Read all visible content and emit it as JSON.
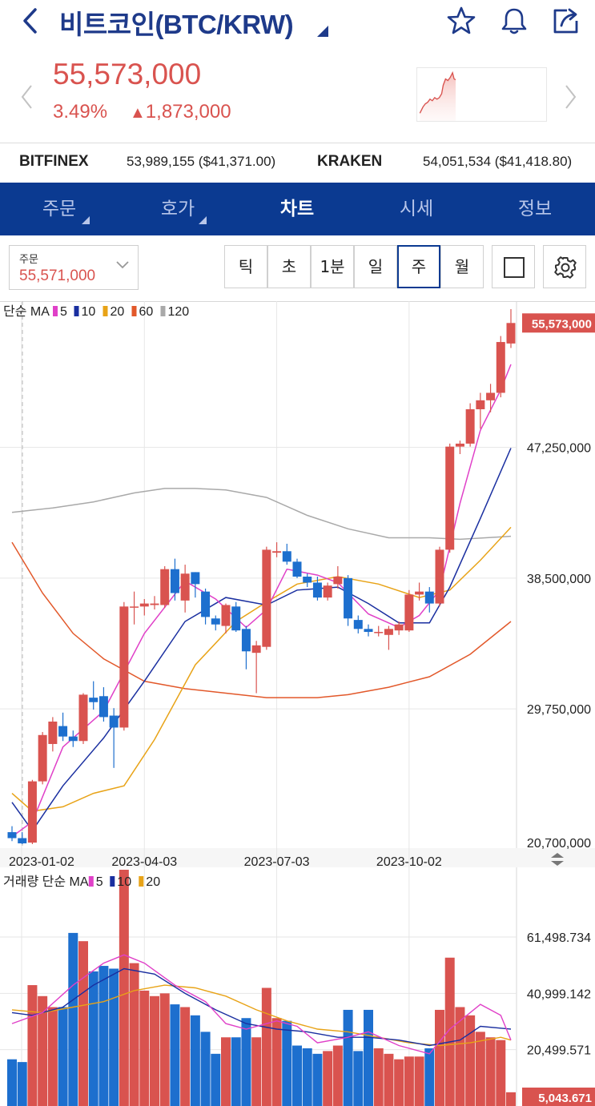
{
  "header": {
    "title": "비트코인(BTC/KRW)",
    "icons": [
      "back-icon",
      "star-icon",
      "bell-icon",
      "share-icon"
    ]
  },
  "price": {
    "current": "55,573,000",
    "change_pct": "3.49%",
    "change_abs": "1,873,000",
    "direction": "up"
  },
  "exchanges": [
    {
      "name": "BITFINEX",
      "value": "53,989,155 ($41,371.00)"
    },
    {
      "name": "KRAKEN",
      "value": "54,051,534 ($41,418.80)"
    }
  ],
  "tabs": [
    {
      "label": "주문",
      "has_menu": true,
      "active": false
    },
    {
      "label": "호가",
      "has_menu": true,
      "active": false
    },
    {
      "label": "차트",
      "has_menu": false,
      "active": true
    },
    {
      "label": "시세",
      "has_menu": false,
      "active": false
    },
    {
      "label": "정보",
      "has_menu": false,
      "active": false
    }
  ],
  "order": {
    "label": "주문",
    "value": "55,571,000"
  },
  "periods": [
    {
      "label": "틱",
      "active": false
    },
    {
      "label": "초",
      "active": false
    },
    {
      "label": "1분",
      "active": false
    },
    {
      "label": "일",
      "active": false
    },
    {
      "label": "주",
      "active": true
    },
    {
      "label": "월",
      "active": false
    }
  ],
  "colors": {
    "up": "#d9534f",
    "down": "#1d6fce",
    "brand": "#0b3a91",
    "ma5": "#e040c8",
    "ma10": "#1a2fa0",
    "ma20": "#e8a317",
    "ma60": "#e2582a",
    "ma120": "#a9a9a9"
  },
  "chart_data": [
    {
      "type": "candlestick",
      "legend": {
        "prefix": "단순 MA",
        "items": [
          {
            "label": "5",
            "color": "#e040c8"
          },
          {
            "label": "10",
            "color": "#1a2fa0"
          },
          {
            "label": "20",
            "color": "#e8a317"
          },
          {
            "label": "60",
            "color": "#e2582a"
          },
          {
            "label": "120",
            "color": "#a9a9a9"
          }
        ]
      },
      "y_ticks": [
        {
          "value": 47250000,
          "label": "47,250,000"
        },
        {
          "value": 38500000,
          "label": "38,500,000"
        },
        {
          "value": 29750000,
          "label": "29,750,000"
        },
        {
          "value": 20700000,
          "label": "20,700,000"
        }
      ],
      "last_price_label": "55,573,000",
      "last_price": 55573000,
      "ylim": [
        20700000,
        56500000
      ],
      "x_ticks": [
        {
          "index": 0,
          "label": "2023-01-02"
        },
        {
          "index": 13,
          "label": "2023-04-03"
        },
        {
          "index": 26,
          "label": "2023-07-03"
        },
        {
          "index": 39,
          "label": "2023-10-02"
        }
      ],
      "candles": [
        {
          "o": 21500000,
          "h": 21900000,
          "l": 20900000,
          "c": 21100000
        },
        {
          "o": 21100000,
          "h": 21500000,
          "l": 20700000,
          "c": 20750000
        },
        {
          "o": 20800000,
          "h": 25000000,
          "l": 20700000,
          "c": 24900000
        },
        {
          "o": 24900000,
          "h": 28200000,
          "l": 24700000,
          "c": 28000000
        },
        {
          "o": 27400000,
          "h": 29200000,
          "l": 26900000,
          "c": 28900000
        },
        {
          "o": 28600000,
          "h": 29500000,
          "l": 27600000,
          "c": 27900000
        },
        {
          "o": 27900000,
          "h": 28300000,
          "l": 27200000,
          "c": 27600000
        },
        {
          "o": 27600000,
          "h": 30800000,
          "l": 27400000,
          "c": 30700000
        },
        {
          "o": 30500000,
          "h": 31600000,
          "l": 29700000,
          "c": 30200000
        },
        {
          "o": 30600000,
          "h": 31200000,
          "l": 28900000,
          "c": 29200000
        },
        {
          "o": 29300000,
          "h": 29800000,
          "l": 25800000,
          "c": 28500000
        },
        {
          "o": 28500000,
          "h": 36900000,
          "l": 28300000,
          "c": 36600000
        },
        {
          "o": 36600000,
          "h": 37600000,
          "l": 35400000,
          "c": 36600000
        },
        {
          "o": 36600000,
          "h": 37100000,
          "l": 36000000,
          "c": 36800000
        },
        {
          "o": 36700000,
          "h": 37300000,
          "l": 36400000,
          "c": 36800000
        },
        {
          "o": 36700000,
          "h": 39300000,
          "l": 36500000,
          "c": 39100000
        },
        {
          "o": 39100000,
          "h": 39800000,
          "l": 37000000,
          "c": 37500000
        },
        {
          "o": 37000000,
          "h": 39400000,
          "l": 36200000,
          "c": 38800000
        },
        {
          "o": 38900000,
          "h": 38900000,
          "l": 37200000,
          "c": 38100000
        },
        {
          "o": 37600000,
          "h": 37800000,
          "l": 35400000,
          "c": 35900000
        },
        {
          "o": 35800000,
          "h": 36000000,
          "l": 35000000,
          "c": 35400000
        },
        {
          "o": 35300000,
          "h": 36800000,
          "l": 34800000,
          "c": 36700000
        },
        {
          "o": 36600000,
          "h": 36900000,
          "l": 34900000,
          "c": 35000000
        },
        {
          "o": 35100000,
          "h": 35300000,
          "l": 32400000,
          "c": 33600000
        },
        {
          "o": 33500000,
          "h": 34300000,
          "l": 30800000,
          "c": 34000000
        },
        {
          "o": 33900000,
          "h": 40600000,
          "l": 33700000,
          "c": 40400000
        },
        {
          "o": 40200000,
          "h": 40900000,
          "l": 39900000,
          "c": 40300000
        },
        {
          "o": 40300000,
          "h": 40800000,
          "l": 39400000,
          "c": 39600000
        },
        {
          "o": 39600000,
          "h": 39800000,
          "l": 38500000,
          "c": 38600000
        },
        {
          "o": 38600000,
          "h": 38800000,
          "l": 37900000,
          "c": 38200000
        },
        {
          "o": 38200000,
          "h": 38600000,
          "l": 37000000,
          "c": 37200000
        },
        {
          "o": 37200000,
          "h": 38200000,
          "l": 37000000,
          "c": 38000000
        },
        {
          "o": 38100000,
          "h": 39300000,
          "l": 37800000,
          "c": 38600000
        },
        {
          "o": 38500000,
          "h": 38700000,
          "l": 35300000,
          "c": 35800000
        },
        {
          "o": 35700000,
          "h": 36000000,
          "l": 34800000,
          "c": 35100000
        },
        {
          "o": 35100000,
          "h": 35400000,
          "l": 34600000,
          "c": 34900000
        },
        {
          "o": 34900000,
          "h": 35300000,
          "l": 34600000,
          "c": 34900000
        },
        {
          "o": 34700000,
          "h": 35300000,
          "l": 33700000,
          "c": 35100000
        },
        {
          "o": 35000000,
          "h": 35600000,
          "l": 34700000,
          "c": 35400000
        },
        {
          "o": 35000000,
          "h": 37700000,
          "l": 34900000,
          "c": 37400000
        },
        {
          "o": 37400000,
          "h": 38200000,
          "l": 37000000,
          "c": 37600000
        },
        {
          "o": 37600000,
          "h": 37900000,
          "l": 36200000,
          "c": 36800000
        },
        {
          "o": 36800000,
          "h": 40600000,
          "l": 36600000,
          "c": 40400000
        },
        {
          "o": 40400000,
          "h": 47500000,
          "l": 40200000,
          "c": 47300000
        },
        {
          "o": 47300000,
          "h": 47700000,
          "l": 46800000,
          "c": 47500000
        },
        {
          "o": 47500000,
          "h": 50200000,
          "l": 47300000,
          "c": 49800000
        },
        {
          "o": 49800000,
          "h": 50900000,
          "l": 48500000,
          "c": 50400000
        },
        {
          "o": 50400000,
          "h": 51500000,
          "l": 49600000,
          "c": 50900000
        },
        {
          "o": 50900000,
          "h": 54700000,
          "l": 50600000,
          "c": 54300000
        },
        {
          "o": 54200000,
          "h": 56500000,
          "l": 53900000,
          "c": 55573000
        }
      ],
      "ma": {
        "ma5": [
          [
            0,
            21200000
          ],
          [
            2,
            22200000
          ],
          [
            5,
            27200000
          ],
          [
            9,
            29600000
          ],
          [
            13,
            34800000
          ],
          [
            17,
            38300000
          ],
          [
            20,
            37100000
          ],
          [
            23,
            35200000
          ],
          [
            25,
            36400000
          ],
          [
            27,
            39100000
          ],
          [
            30,
            38700000
          ],
          [
            32,
            38200000
          ],
          [
            35,
            36100000
          ],
          [
            38,
            35200000
          ],
          [
            40,
            36000000
          ],
          [
            42,
            37700000
          ],
          [
            44,
            43500000
          ],
          [
            46,
            48400000
          ],
          [
            48,
            51100000
          ],
          [
            49,
            52800000
          ]
        ],
        "ma10": [
          [
            0,
            23500000
          ],
          [
            2,
            21600000
          ],
          [
            5,
            24600000
          ],
          [
            9,
            27800000
          ],
          [
            13,
            31600000
          ],
          [
            17,
            35600000
          ],
          [
            21,
            37200000
          ],
          [
            25,
            36700000
          ],
          [
            28,
            37700000
          ],
          [
            32,
            37900000
          ],
          [
            35,
            36800000
          ],
          [
            38,
            35500000
          ],
          [
            41,
            35500000
          ],
          [
            43,
            37900000
          ],
          [
            46,
            42500000
          ],
          [
            49,
            47200000
          ]
        ],
        "ma20": [
          [
            0,
            24100000
          ],
          [
            2,
            22900000
          ],
          [
            5,
            23200000
          ],
          [
            8,
            24100000
          ],
          [
            11,
            24600000
          ],
          [
            14,
            27700000
          ],
          [
            18,
            32700000
          ],
          [
            22,
            35600000
          ],
          [
            25,
            36900000
          ],
          [
            28,
            38100000
          ],
          [
            32,
            38600000
          ],
          [
            36,
            38100000
          ],
          [
            40,
            37200000
          ],
          [
            43,
            37700000
          ],
          [
            46,
            39700000
          ],
          [
            49,
            41900000
          ]
        ],
        "ma60": [
          [
            0,
            40900000
          ],
          [
            3,
            37500000
          ],
          [
            6,
            34800000
          ],
          [
            9,
            33100000
          ],
          [
            13,
            31600000
          ],
          [
            17,
            31100000
          ],
          [
            21,
            30800000
          ],
          [
            25,
            30500000
          ],
          [
            30,
            30500000
          ],
          [
            33,
            30700000
          ],
          [
            37,
            31200000
          ],
          [
            41,
            31900000
          ],
          [
            45,
            33400000
          ],
          [
            49,
            35600000
          ]
        ],
        "ma120": [
          [
            0,
            42900000
          ],
          [
            4,
            43200000
          ],
          [
            8,
            43600000
          ],
          [
            12,
            44200000
          ],
          [
            15,
            44500000
          ],
          [
            18,
            44500000
          ],
          [
            21,
            44400000
          ],
          [
            25,
            43900000
          ],
          [
            29,
            42700000
          ],
          [
            33,
            41800000
          ],
          [
            37,
            41200000
          ],
          [
            41,
            41200000
          ],
          [
            44,
            41100000
          ],
          [
            49,
            41300000
          ]
        ]
      }
    },
    {
      "type": "bar",
      "legend": {
        "prefix": "거래량 단순 MA",
        "items": [
          {
            "label": "5",
            "color": "#e040c8"
          },
          {
            "label": "10",
            "color": "#1a2fa0"
          },
          {
            "label": "20",
            "color": "#e8a317"
          }
        ]
      },
      "y_ticks": [
        {
          "value": 61498734,
          "label": "61,498.734"
        },
        {
          "value": 40999142,
          "label": "40,999.142"
        },
        {
          "value": 20499571,
          "label": "20,499.571"
        }
      ],
      "last_value_label": "5,043.671",
      "last_value": 5043671,
      "ylim": [
        0,
        86000000
      ],
      "volumes": [
        17000000,
        16000000,
        44000000,
        40000000,
        36000000,
        36000000,
        63000000,
        60000000,
        49000000,
        51000000,
        50000000,
        86000000,
        52000000,
        42000000,
        40000000,
        41000000,
        37000000,
        36000000,
        33000000,
        27000000,
        19000000,
        25000000,
        25000000,
        32000000,
        25000000,
        43000000,
        32000000,
        31000000,
        22000000,
        21000000,
        19000000,
        20000000,
        22000000,
        35000000,
        20000000,
        35000000,
        21000000,
        19000000,
        17000000,
        18000000,
        18000000,
        21000000,
        35000000,
        54000000,
        36000000,
        33000000,
        27000000,
        25000000,
        24000000,
        5000000
      ],
      "ma": {
        "ma5": [
          [
            0,
            30000000
          ],
          [
            3,
            34000000
          ],
          [
            6,
            44000000
          ],
          [
            9,
            52000000
          ],
          [
            11,
            55000000
          ],
          [
            13,
            52000000
          ],
          [
            16,
            44000000
          ],
          [
            19,
            38000000
          ],
          [
            21,
            30000000
          ],
          [
            23,
            28000000
          ],
          [
            26,
            31000000
          ],
          [
            28,
            29000000
          ],
          [
            30,
            23000000
          ],
          [
            33,
            25000000
          ],
          [
            35,
            27000000
          ],
          [
            38,
            22000000
          ],
          [
            41,
            19000000
          ],
          [
            43,
            28000000
          ],
          [
            46,
            37000000
          ],
          [
            48,
            33000000
          ],
          [
            49,
            24000000
          ]
        ],
        "ma10": [
          [
            0,
            34000000
          ],
          [
            2,
            33000000
          ],
          [
            5,
            36000000
          ],
          [
            8,
            44000000
          ],
          [
            11,
            50000000
          ],
          [
            14,
            48000000
          ],
          [
            17,
            41000000
          ],
          [
            20,
            35000000
          ],
          [
            23,
            30000000
          ],
          [
            26,
            28000000
          ],
          [
            29,
            27000000
          ],
          [
            32,
            25000000
          ],
          [
            35,
            25000000
          ],
          [
            38,
            24000000
          ],
          [
            41,
            22000000
          ],
          [
            44,
            24000000
          ],
          [
            46,
            29000000
          ],
          [
            49,
            28000000
          ]
        ],
        "ma20": [
          [
            0,
            35000000
          ],
          [
            3,
            34000000
          ],
          [
            6,
            36000000
          ],
          [
            9,
            38000000
          ],
          [
            12,
            42000000
          ],
          [
            15,
            44000000
          ],
          [
            18,
            43000000
          ],
          [
            21,
            40000000
          ],
          [
            24,
            35000000
          ],
          [
            27,
            31000000
          ],
          [
            30,
            28000000
          ],
          [
            33,
            27000000
          ],
          [
            36,
            25000000
          ],
          [
            39,
            23000000
          ],
          [
            42,
            22000000
          ],
          [
            45,
            23000000
          ],
          [
            48,
            25000000
          ],
          [
            49,
            24000000
          ]
        ]
      }
    }
  ]
}
